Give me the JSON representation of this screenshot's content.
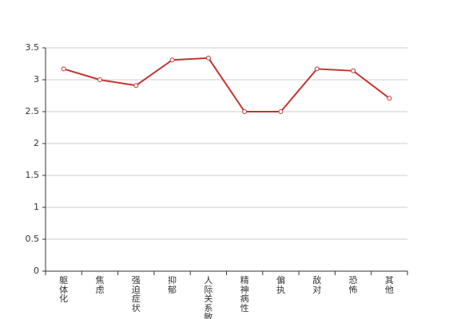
{
  "chart_data": {
    "type": "line",
    "categories": [
      "躯体化",
      "焦虑",
      "强迫症状",
      "抑郁",
      "人际关系敏感",
      "精神病性",
      "偏执",
      "敌对",
      "恐怖",
      "其他"
    ],
    "series": [
      {
        "color": "#c23531",
        "values": [
          3.17,
          3.0,
          2.91,
          3.31,
          3.34,
          2.5,
          2.5,
          3.17,
          3.14,
          2.71
        ]
      }
    ],
    "ylim": [
      0,
      3.5
    ],
    "yticks": [
      0,
      0.5,
      1,
      1.5,
      2,
      2.5,
      3,
      3.5
    ],
    "grid": true
  }
}
